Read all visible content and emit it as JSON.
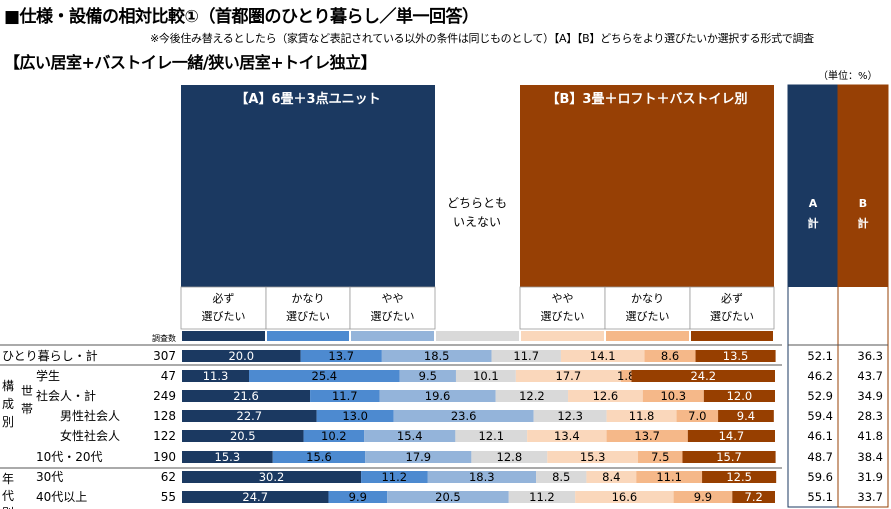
{
  "title": "■仕様・設備の相対比較①（首都圏のひとり暮らし／単一回答）",
  "note": "※今後住み替えるとしたら（家賃など表記されている以外の条件は同じものとして）【A】【B】どちらをより選びたいか選択する形式で調査",
  "subtitle": "【広い居室+バストイレ一緒/狭い居室+トイレ独立】",
  "unit": "（単位：%）",
  "chart_data": {
    "type": "bar",
    "orientation": "horizontal-stacked-100",
    "header": {
      "a_label": "【A】6畳＋3点ユニット",
      "b_label": "【B】3畳＋ロフト＋バストイレ別",
      "mid_label_1": "どちらとも",
      "mid_label_2": "いえない",
      "n_label": "調査数",
      "col_a_total_1": "A",
      "col_a_total_2": "計",
      "col_b_total_1": "B",
      "col_b_total_2": "計"
    },
    "categories_lines": [
      [
        "必ず",
        "選びたい"
      ],
      [
        "かなり",
        "選びたい"
      ],
      [
        "やや",
        "選びたい"
      ],
      [
        "",
        ""
      ],
      [
        "やや",
        "選びたい"
      ],
      [
        "かなり",
        "選びたい"
      ],
      [
        "必ず",
        "選びたい"
      ]
    ],
    "series_names": [
      "A 必ず選びたい",
      "A かなり選びたい",
      "A やや選びたい",
      "どちらともいえない",
      "B やや選びたい",
      "B かなり選びたい",
      "B 必ず選びたい"
    ],
    "colors": [
      "#1b3961",
      "#4d8ad0",
      "#94b4da",
      "#d9d9d9",
      "#fad7bb",
      "#f5b889",
      "#973f00"
    ],
    "header_colors": {
      "a": "#1b3961",
      "b": "#974005",
      "a_total": "#1b3961",
      "b_total": "#974005"
    },
    "side_labels": {
      "kousei": [
        "構",
        "成",
        "別"
      ],
      "setai": [
        "世",
        "帯"
      ],
      "nendai": [
        "年",
        "代",
        "別"
      ]
    },
    "rows": [
      {
        "label": "ひとり暮らし・計",
        "n": "307",
        "values": [
          20.0,
          13.7,
          18.5,
          11.7,
          14.1,
          8.6,
          13.5
        ],
        "a_total": "52.1",
        "b_total": "36.3"
      },
      {
        "label": "学生",
        "n": "47",
        "values": [
          11.3,
          25.4,
          9.5,
          10.1,
          17.7,
          1.8,
          24.2
        ],
        "a_total": "46.2",
        "b_total": "43.7"
      },
      {
        "label": "社会人・計",
        "n": "249",
        "values": [
          21.6,
          11.7,
          19.6,
          12.2,
          12.6,
          10.3,
          12.0
        ],
        "a_total": "52.9",
        "b_total": "34.9"
      },
      {
        "label": "男性社会人",
        "n": "128",
        "values": [
          22.7,
          13.0,
          23.6,
          12.3,
          11.8,
          7.0,
          9.4
        ],
        "a_total": "59.4",
        "b_total": "28.3"
      },
      {
        "label": "女性社会人",
        "n": "122",
        "values": [
          20.5,
          10.2,
          15.4,
          12.1,
          13.4,
          13.7,
          14.7
        ],
        "a_total": "46.1",
        "b_total": "41.8"
      },
      {
        "label": "10代・20代",
        "n": "190",
        "values": [
          15.3,
          15.6,
          17.9,
          12.8,
          15.3,
          7.5,
          15.7
        ],
        "a_total": "48.7",
        "b_total": "38.4"
      },
      {
        "label": "30代",
        "n": "62",
        "values": [
          30.2,
          11.2,
          18.3,
          8.5,
          8.4,
          11.1,
          12.5
        ],
        "a_total": "59.6",
        "b_total": "31.9"
      },
      {
        "label": "40代以上",
        "n": "55",
        "values": [
          24.7,
          9.9,
          20.5,
          11.2,
          16.6,
          9.9,
          7.2
        ],
        "a_total": "55.1",
        "b_total": "33.7"
      }
    ],
    "xlim": [
      0,
      100
    ]
  }
}
